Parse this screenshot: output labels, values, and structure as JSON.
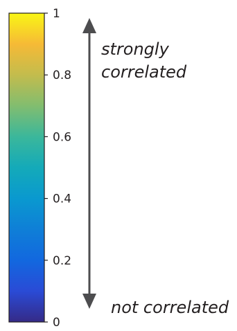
{
  "chart_data": {
    "type": "colorbar",
    "colormap": "parula",
    "range": [
      0,
      1
    ],
    "ticks": [
      {
        "value": 0,
        "label": "0"
      },
      {
        "value": 0.2,
        "label": "0.2"
      },
      {
        "value": 0.4,
        "label": "0.4"
      },
      {
        "value": 0.6,
        "label": "0.6"
      },
      {
        "value": 0.8,
        "label": "0.8"
      },
      {
        "value": 1,
        "label": "1"
      }
    ],
    "color_stops": [
      {
        "value": 0.0,
        "color": "#352a87"
      },
      {
        "value": 0.1,
        "color": "#2a4bd6"
      },
      {
        "value": 0.2,
        "color": "#1268df"
      },
      {
        "value": 0.3,
        "color": "#0f7fd7"
      },
      {
        "value": 0.4,
        "color": "#0a99cf"
      },
      {
        "value": 0.5,
        "color": "#14aab9"
      },
      {
        "value": 0.6,
        "color": "#3bb79b"
      },
      {
        "value": 0.7,
        "color": "#82bd6f"
      },
      {
        "value": 0.8,
        "color": "#c3bc4d"
      },
      {
        "value": 0.9,
        "color": "#f6ba36"
      },
      {
        "value": 1.0,
        "color": "#f9f615"
      }
    ],
    "annotations": {
      "top_line1": "strongly",
      "top_line2": "correlated",
      "bottom": "not correlated"
    }
  }
}
